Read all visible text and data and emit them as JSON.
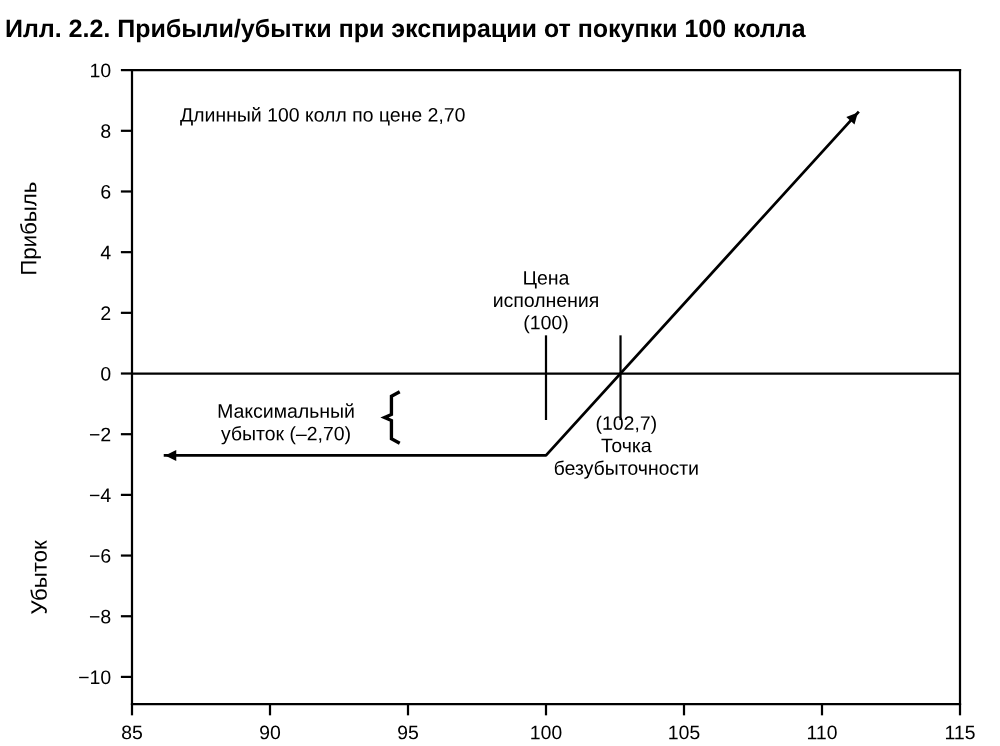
{
  "chart_data": {
    "type": "line",
    "title": "Илл. 2.2. Прибыли/убытки при экспирации от покупки 100 колла",
    "ylabel": "Прибыль",
    "x": [
      86.2,
      100,
      111.3
    ],
    "series": [
      {
        "color": "#000000",
        "values": [
          -2.7,
          -2.7,
          8.6
        ]
      }
    ],
    "xlim": [
      85,
      115
    ],
    "xticks": [
      85,
      90,
      95,
      100,
      105,
      110,
      115
    ],
    "ylim": [
      -10.9,
      10
    ],
    "yticks": [
      -10,
      -8,
      -6,
      -4,
      -2,
      0,
      2,
      4,
      6,
      8,
      10
    ],
    "ref_lines": [
      {
        "axis": "y",
        "value": 0,
        "label": null,
        "color": "#000000"
      },
      {
        "axis": "x",
        "value": 100,
        "label": null,
        "color": "#000000"
      },
      {
        "axis": "x",
        "value": 102.7,
        "label": null,
        "color": "#000000"
      }
    ],
    "annotations": [
      "Длинный 100 колл по цене 2,70",
      "Убыток",
      "Цена\nисполнения\n(100)",
      "(102,7)\nТочка\nбезубыточности",
      "Максимальный\nубыток (–2,70)"
    ],
    "grid": false,
    "legend": false,
    "marker": "none",
    "line_style": "solid"
  }
}
